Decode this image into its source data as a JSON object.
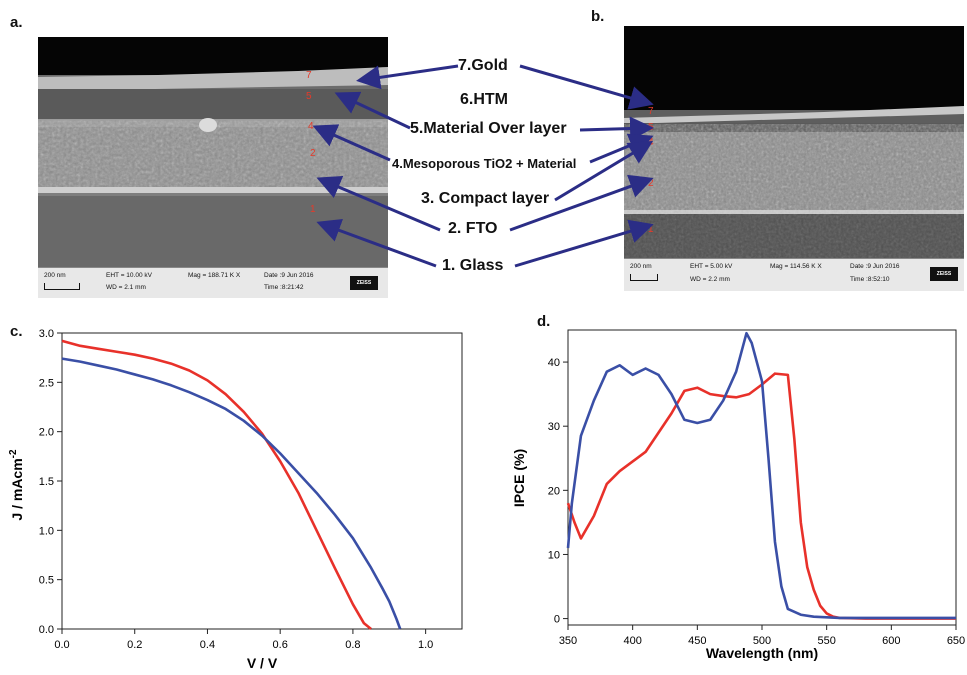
{
  "panels": {
    "a": "a.",
    "b": "b.",
    "c": "c.",
    "d": "d."
  },
  "sem_a": {
    "scalebar": "200 nm",
    "eht": "EHT = 10.00 kV",
    "wd": "WD = 2.1 mm",
    "mag": "Mag = 188.71 K X",
    "date": "Date :9 Jun 2016",
    "time": "Time :8:21:42",
    "logo": "ZEISS",
    "layer_numbers": [
      "7",
      "5",
      "4",
      "2",
      "1"
    ]
  },
  "sem_b": {
    "scalebar": "200 nm",
    "eht": "EHT = 5.00 kV",
    "wd": "WD = 2.2 mm",
    "mag": "Mag = 114.56 K X",
    "date": "Date :9 Jun 2016",
    "time": "Time :8:52:10",
    "logo": "ZEISS",
    "layer_numbers": [
      "7",
      "5",
      "4",
      "2",
      "1"
    ]
  },
  "callouts": {
    "gold": "7.Gold",
    "htm": "6.HTM",
    "overlayer": "5.Material Over layer",
    "meso": "4.Mesoporous TiO2 + Material",
    "compact": "3. Compact layer",
    "fto": "2. FTO",
    "glass": "1. Glass"
  },
  "colors": {
    "red": "#e8312a",
    "blue": "#3a4fa6",
    "arrow": "#2b2d86"
  },
  "chart_data": [
    {
      "type": "line",
      "xlabel": "V / V",
      "ylabel": "J / mAcm",
      "ylabel_sup": "-2",
      "xlim": [
        0,
        1.1
      ],
      "ylim": [
        0,
        3.0
      ],
      "xticks": [
        "0.0",
        "0.2",
        "0.4",
        "0.6",
        "0.8",
        "1.0"
      ],
      "yticks": [
        "0.0",
        "0.5",
        "1.0",
        "1.5",
        "2.0",
        "2.5",
        "3.0"
      ],
      "series": [
        {
          "color": "#e8312a",
          "x": [
            0,
            0.05,
            0.1,
            0.15,
            0.2,
            0.25,
            0.3,
            0.35,
            0.4,
            0.45,
            0.5,
            0.55,
            0.6,
            0.65,
            0.7,
            0.75,
            0.8,
            0.83,
            0.85
          ],
          "y": [
            2.92,
            2.87,
            2.84,
            2.81,
            2.78,
            2.74,
            2.69,
            2.62,
            2.52,
            2.38,
            2.2,
            1.98,
            1.7,
            1.38,
            1.0,
            0.62,
            0.25,
            0.06,
            0.0
          ]
        },
        {
          "color": "#3a4fa6",
          "x": [
            0,
            0.05,
            0.1,
            0.15,
            0.2,
            0.25,
            0.3,
            0.35,
            0.4,
            0.45,
            0.5,
            0.55,
            0.6,
            0.65,
            0.7,
            0.75,
            0.8,
            0.85,
            0.88,
            0.9,
            0.92,
            0.93
          ],
          "y": [
            2.74,
            2.71,
            2.67,
            2.63,
            2.58,
            2.53,
            2.47,
            2.4,
            2.32,
            2.23,
            2.11,
            1.96,
            1.78,
            1.58,
            1.38,
            1.16,
            0.92,
            0.62,
            0.42,
            0.28,
            0.1,
            0.0
          ]
        }
      ]
    },
    {
      "type": "line",
      "xlabel": "Wavelength (nm)",
      "ylabel": "IPCE (%)",
      "xlim": [
        350,
        650
      ],
      "ylim": [
        -1,
        45
      ],
      "xticks": [
        "350",
        "400",
        "450",
        "500",
        "550",
        "600",
        "650"
      ],
      "yticks": [
        "0",
        "10",
        "20",
        "30",
        "40"
      ],
      "series": [
        {
          "color": "#e8312a",
          "x": [
            350,
            355,
            360,
            370,
            380,
            390,
            400,
            410,
            420,
            430,
            440,
            450,
            460,
            470,
            480,
            490,
            500,
            510,
            520,
            525,
            530,
            535,
            540,
            545,
            550,
            555,
            560,
            580,
            600,
            620,
            650
          ],
          "y": [
            18,
            15,
            12.5,
            16,
            21,
            23,
            24.5,
            26,
            29,
            32,
            35.5,
            36,
            35,
            34.7,
            34.5,
            35,
            36.5,
            38.2,
            38,
            28,
            15,
            8,
            4.5,
            2,
            0.8,
            0.3,
            0.1,
            0,
            0,
            0,
            0
          ]
        },
        {
          "color": "#3a4fa6",
          "x": [
            350,
            353,
            360,
            370,
            380,
            390,
            400,
            410,
            420,
            430,
            440,
            450,
            460,
            470,
            480,
            488,
            492,
            500,
            505,
            510,
            515,
            520,
            530,
            540,
            550,
            560,
            580,
            600,
            620,
            650
          ],
          "y": [
            11,
            18,
            28.5,
            34,
            38.5,
            39.5,
            38,
            39,
            38,
            35,
            31,
            30.5,
            31,
            34,
            38.5,
            44.5,
            43,
            37,
            25,
            12,
            5,
            1.5,
            0.6,
            0.3,
            0.2,
            0.1,
            0.1,
            0.1,
            0.1,
            0.1
          ]
        }
      ]
    }
  ]
}
